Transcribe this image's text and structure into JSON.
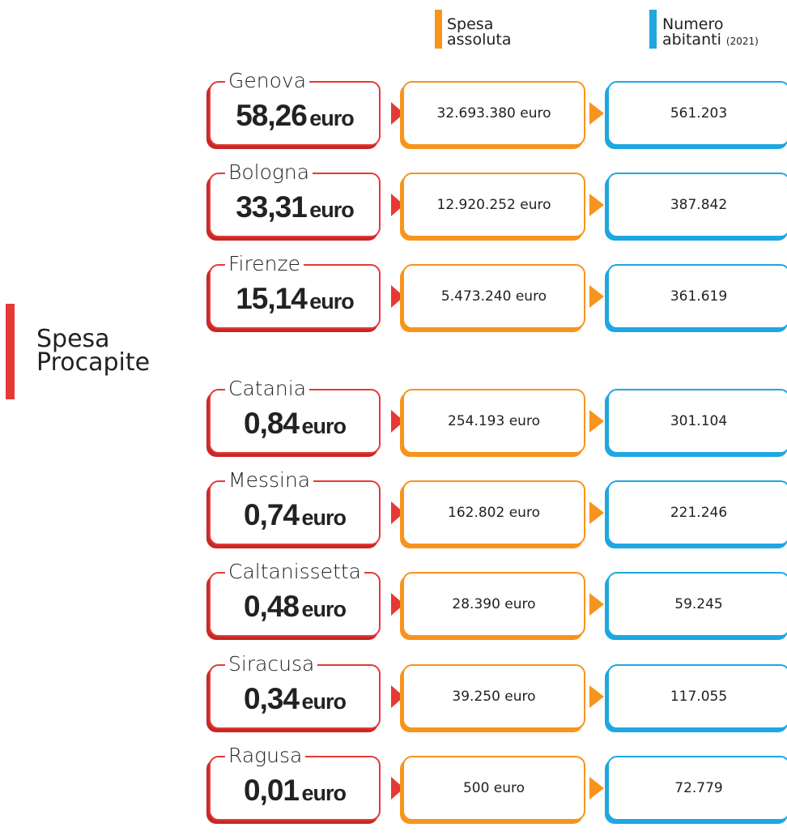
{
  "header": {
    "spesa_line1": "Spesa",
    "spesa_line2": "assoluta",
    "abitanti_line1": "Numero",
    "abitanti_line2": "abitanti",
    "abitanti_year": "(2021)"
  },
  "side_label": {
    "line1": "Spesa",
    "line2": "Procapite"
  },
  "rows": [
    {
      "city": "Genova",
      "per_capita": "58,26",
      "unit": "euro",
      "spesa": "32.693.380 euro",
      "abitanti": "561.203"
    },
    {
      "city": "Bologna",
      "per_capita": "33,31",
      "unit": "euro",
      "spesa": "12.920.252 euro",
      "abitanti": "387.842"
    },
    {
      "city": "Firenze",
      "per_capita": "15,14",
      "unit": "euro",
      "spesa": "5.473.240 euro",
      "abitanti": "361.619"
    },
    {
      "city": "Catania",
      "per_capita": "0,84",
      "unit": "euro",
      "spesa": "254.193 euro",
      "abitanti": "301.104"
    },
    {
      "city": "Messina",
      "per_capita": "0,74",
      "unit": "euro",
      "spesa": "162.802 euro",
      "abitanti": "221.246"
    },
    {
      "city": "Caltanissetta",
      "per_capita": "0,48",
      "unit": "euro",
      "spesa": "28.390 euro",
      "abitanti": "59.245"
    },
    {
      "city": "Siracusa",
      "per_capita": "0,34",
      "unit": "euro",
      "spesa": "39.250 euro",
      "abitanti": "117.055"
    },
    {
      "city": "Ragusa",
      "per_capita": "0,01",
      "unit": "euro",
      "spesa": "500 euro",
      "abitanti": "72.779"
    }
  ]
}
